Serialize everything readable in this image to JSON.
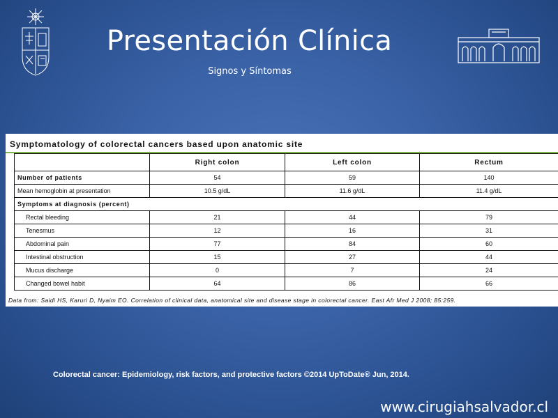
{
  "slide": {
    "title": "Presentación Clínica",
    "subtitle": "Signos y Síntomas",
    "citation": "Colorectal cancer: Epidemiology, risk factors, and protective factors ©2014 UpToDate® Jun, 2014.",
    "website": "www.cirugiahsalvador.cl"
  },
  "table": {
    "title": "Symptomatology of colorectal cancers based upon anatomic site",
    "headers": [
      "",
      "Right colon",
      "Left colon",
      "Rectum"
    ],
    "rows": [
      {
        "label": "Number of patients",
        "values": [
          "54",
          "59",
          "140"
        ]
      },
      {
        "label": "Mean hemoglobin at presentation",
        "values": [
          "10.5 g/dL",
          "11.6 g/dL",
          "11.4 g/dL"
        ]
      }
    ],
    "section_label": "Symptoms at diagnosis (percent)",
    "symptoms": [
      {
        "label": "Rectal bleeding",
        "values": [
          "21",
          "44",
          "79"
        ]
      },
      {
        "label": "Tenesmus",
        "values": [
          "12",
          "16",
          "31"
        ]
      },
      {
        "label": "Abdominal pain",
        "values": [
          "77",
          "84",
          "60"
        ]
      },
      {
        "label": "Intestinal obstruction",
        "values": [
          "15",
          "27",
          "44"
        ]
      },
      {
        "label": "Mucus discharge",
        "values": [
          "0",
          "7",
          "24"
        ]
      },
      {
        "label": "Changed bowel habit",
        "values": [
          "64",
          "86",
          "66"
        ]
      }
    ],
    "source": "Data from: Saidi HS, Karuri D, Nyaim EO. Correlation of clinical data, anatomical site and disease stage in colorectal cancer. East Afr Med J 2008; 85:259."
  },
  "icons": {
    "left_logo": "university-crest-icon",
    "right_logo": "building-facade-icon"
  },
  "colors": {
    "background": "#3a62a6",
    "table_rule": "#7fb24a"
  }
}
